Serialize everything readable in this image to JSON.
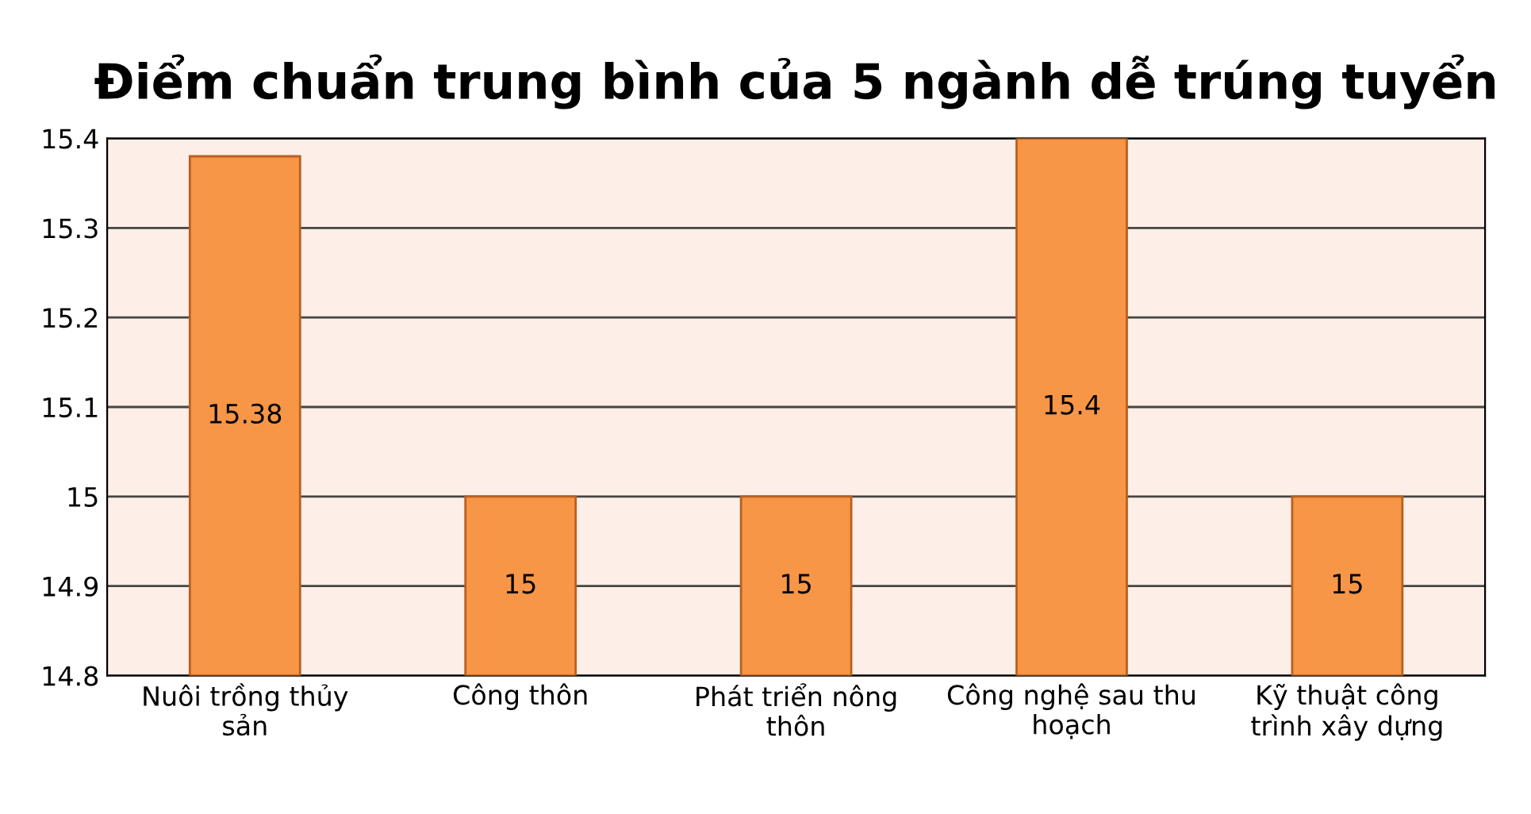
{
  "chart_data": {
    "type": "bar",
    "title": "Điểm chuẩn trung bình của 5 ngành dễ trúng tuyển",
    "categories": [
      "Nuôi trồng thủy sản",
      "Công thôn",
      "Phát triển nông thôn",
      "Công nghệ sau thu hoạch",
      "Kỹ thuật công trình xây dựng"
    ],
    "values": [
      15.38,
      15,
      15,
      15.4,
      15
    ],
    "color": "#f79646",
    "ylim": [
      14.8,
      15.4
    ],
    "yticks": [
      14.8,
      14.9,
      15,
      15.1,
      15.2,
      15.3,
      15.4
    ],
    "grid": "y",
    "data_labels": true
  }
}
